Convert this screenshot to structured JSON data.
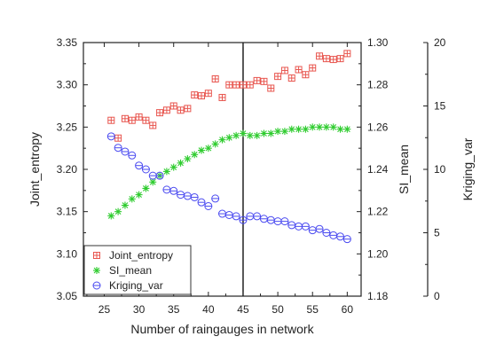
{
  "chart_data": {
    "type": "scatter",
    "title": "",
    "xlabel": "Number of raingauges in network",
    "xlim": [
      22,
      62
    ],
    "xticks": [
      25,
      30,
      35,
      40,
      45,
      50,
      55,
      60
    ],
    "vline_x": 45,
    "axes": {
      "left": {
        "label": "Joint_entropy",
        "ylim": [
          3.05,
          3.35
        ],
        "ticks": [
          "3.05",
          "3.10",
          "3.15",
          "3.20",
          "3.25",
          "3.30",
          "3.35"
        ]
      },
      "right1": {
        "label": "SI_mean",
        "ylim": [
          1.18,
          1.3
        ],
        "ticks": [
          "1.18",
          "1.20",
          "1.22",
          "1.24",
          "1.26",
          "1.28",
          "1.30"
        ]
      },
      "right2": {
        "label": "Kriging_var",
        "ylim": [
          0,
          20
        ],
        "ticks": [
          "0",
          "5",
          "10",
          "15",
          "20"
        ]
      }
    },
    "legend_position": "bottom-left",
    "series": [
      {
        "name": "Joint_entropy",
        "axis": "left",
        "marker": "square",
        "color": "#e8564f",
        "x": [
          26,
          27,
          28,
          29,
          30,
          31,
          32,
          33,
          34,
          35,
          36,
          37,
          38,
          39,
          40,
          41,
          42,
          43,
          44,
          45,
          46,
          47,
          48,
          49,
          50,
          51,
          52,
          53,
          54,
          55,
          56,
          57,
          58,
          59,
          60
        ],
        "y": [
          3.258,
          3.237,
          3.26,
          3.258,
          3.262,
          3.258,
          3.252,
          3.267,
          3.27,
          3.275,
          3.27,
          3.272,
          3.288,
          3.287,
          3.29,
          3.307,
          3.285,
          3.3,
          3.3,
          3.3,
          3.3,
          3.305,
          3.304,
          3.296,
          3.31,
          3.317,
          3.308,
          3.318,
          3.312,
          3.32,
          3.334,
          3.331,
          3.33,
          3.331,
          3.337
        ]
      },
      {
        "name": "SI_mean",
        "axis": "right1",
        "marker": "star",
        "color": "#2ecc2e",
        "x": [
          26,
          27,
          28,
          29,
          30,
          31,
          32,
          33,
          34,
          35,
          36,
          37,
          38,
          39,
          40,
          41,
          42,
          43,
          44,
          45,
          46,
          47,
          48,
          49,
          50,
          51,
          52,
          53,
          54,
          55,
          56,
          57,
          58,
          59,
          60
        ],
        "y": [
          1.218,
          1.22,
          1.223,
          1.226,
          1.228,
          1.231,
          1.234,
          1.237,
          1.239,
          1.241,
          1.243,
          1.245,
          1.247,
          1.249,
          1.25,
          1.252,
          1.254,
          1.255,
          1.256,
          1.257,
          1.256,
          1.256,
          1.257,
          1.257,
          1.258,
          1.258,
          1.259,
          1.259,
          1.259,
          1.26,
          1.26,
          1.26,
          1.26,
          1.259,
          1.259
        ]
      },
      {
        "name": "Kriging_var",
        "axis": "right2",
        "marker": "circle",
        "color": "#4a4af0",
        "x": [
          26,
          27,
          28,
          29,
          30,
          31,
          32,
          33,
          34,
          35,
          36,
          37,
          38,
          39,
          40,
          41,
          42,
          43,
          44,
          45,
          46,
          47,
          48,
          49,
          50,
          51,
          52,
          53,
          54,
          55,
          56,
          57,
          58,
          59,
          60
        ],
        "y": [
          12.6,
          11.7,
          11.4,
          11.1,
          10.3,
          10.0,
          9.5,
          9.5,
          8.4,
          8.3,
          8.0,
          7.9,
          7.8,
          7.4,
          7.1,
          7.7,
          6.5,
          6.4,
          6.3,
          6.0,
          6.3,
          6.3,
          6.1,
          6.0,
          5.9,
          5.9,
          5.6,
          5.5,
          5.5,
          5.2,
          5.3,
          5.0,
          4.8,
          4.7,
          4.5
        ]
      }
    ]
  }
}
